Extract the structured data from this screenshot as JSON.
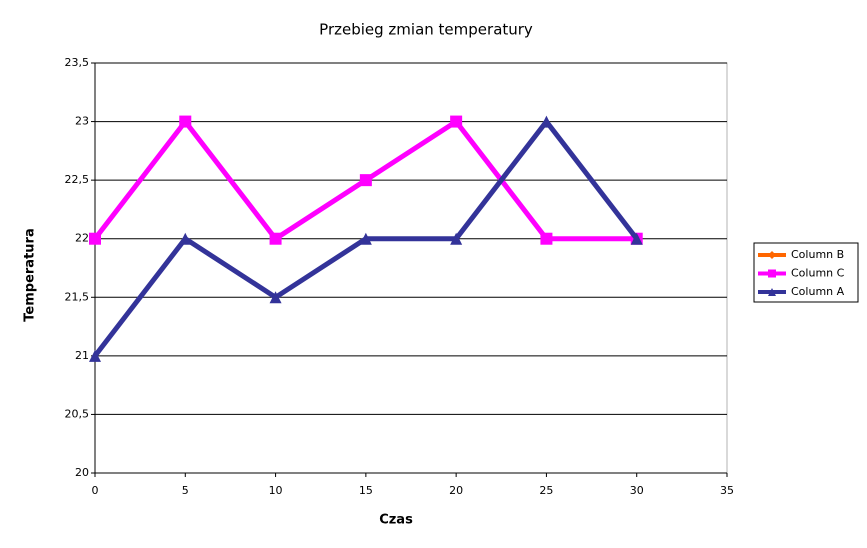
{
  "chart_data": {
    "type": "line",
    "title": "Przebieg zmian temperatury",
    "x_label": "Czas",
    "y_label": "Temperatura",
    "x": [
      0,
      5,
      10,
      15,
      20,
      25,
      30
    ],
    "series": [
      {
        "name": "Column B",
        "color": "#ff6600",
        "marker": "diamond",
        "values": [
          null,
          null,
          null,
          null,
          null,
          null,
          null
        ]
      },
      {
        "name": "Column C",
        "color": "#ff00ff",
        "marker": "square",
        "values": [
          22,
          23,
          22,
          22.5,
          23,
          22,
          22
        ]
      },
      {
        "name": "Column A",
        "color": "#333399",
        "marker": "triangle",
        "values": [
          21,
          22,
          21.5,
          22,
          22,
          23,
          22
        ]
      }
    ],
    "xlim": [
      0,
      35
    ],
    "xticks": [
      0,
      5,
      10,
      15,
      20,
      25,
      30,
      35
    ],
    "ylim": [
      20,
      23.5
    ],
    "yticks": [
      20,
      {
        "value": 20.5,
        "label": "20,5"
      },
      21,
      {
        "value": 21.5,
        "label": "21,5"
      },
      22,
      {
        "value": 22.5,
        "label": "22,5"
      },
      23,
      {
        "value": 23.5,
        "label": "23,5"
      }
    ],
    "grid": true,
    "legend": "right"
  }
}
